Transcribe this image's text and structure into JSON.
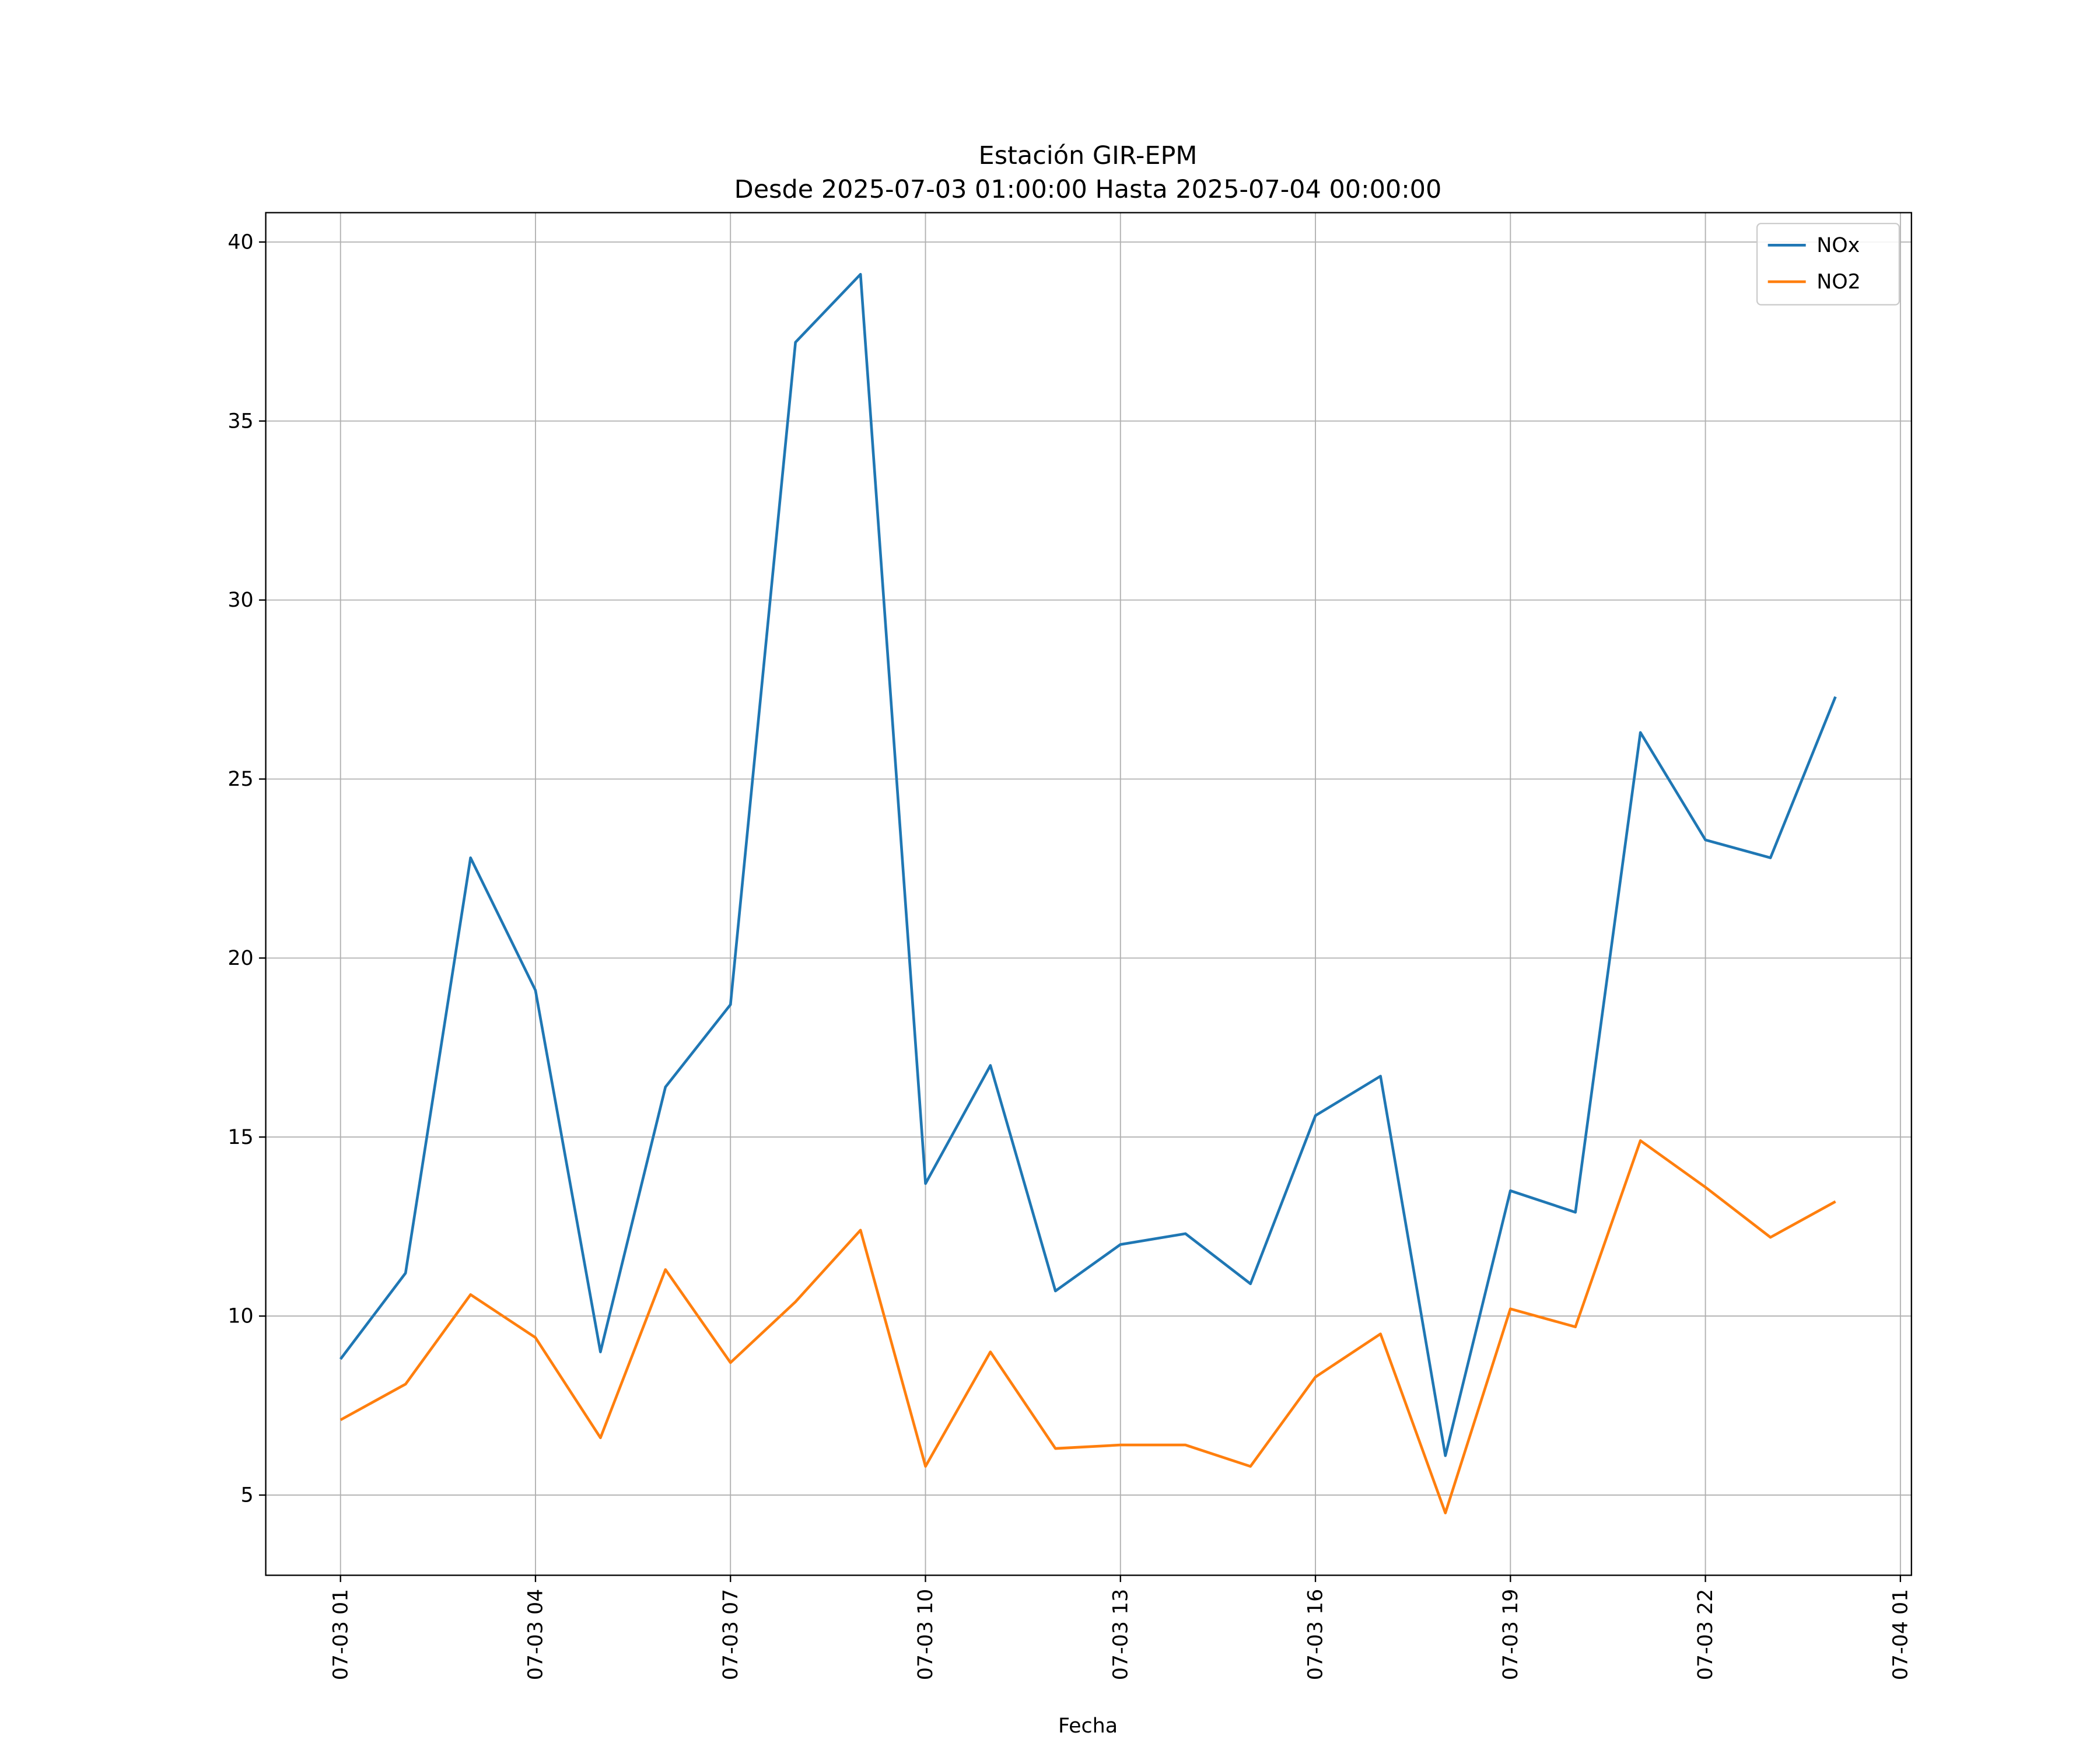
{
  "chart_data": {
    "type": "line",
    "title": "Estación GIR-EPM",
    "subtitle": "Desde 2025-07-03 01:00:00 Hasta 2025-07-04 00:00:00",
    "xlabel": "Fecha",
    "ylabel": "",
    "x": [
      "07-03 01",
      "07-03 02",
      "07-03 03",
      "07-03 04",
      "07-03 05",
      "07-03 06",
      "07-03 07",
      "07-03 08",
      "07-03 09",
      "07-03 10",
      "07-03 11",
      "07-03 12",
      "07-03 13",
      "07-03 14",
      "07-03 15",
      "07-03 16",
      "07-03 17",
      "07-03 18",
      "07-03 19",
      "07-03 20",
      "07-03 21",
      "07-03 22",
      "07-03 23",
      "07-04 00"
    ],
    "x_tick_labels": [
      "07-03 01",
      "07-03 04",
      "07-03 07",
      "07-03 10",
      "07-03 13",
      "07-03 16",
      "07-03 19",
      "07-03 22",
      "07-04 01"
    ],
    "x_tick_hours": [
      0,
      3,
      6,
      9,
      12,
      15,
      18,
      21,
      24
    ],
    "xlim_hours": [
      -1.15,
      24.17
    ],
    "y_ticks": [
      5,
      10,
      15,
      20,
      25,
      30,
      35,
      40
    ],
    "ylim": [
      2.76,
      40.82
    ],
    "grid": true,
    "legend_position": "top-right",
    "series": [
      {
        "name": "NOx",
        "color": "#1f77b4",
        "values": [
          8.8,
          11.2,
          22.8,
          19.1,
          9.0,
          16.4,
          18.7,
          37.2,
          39.1,
          13.7,
          17.0,
          10.7,
          12.0,
          12.3,
          10.9,
          15.6,
          16.7,
          6.1,
          13.5,
          12.9,
          26.3,
          23.3,
          22.8,
          27.3
        ]
      },
      {
        "name": "NO2",
        "color": "#ff7f0e",
        "values": [
          7.1,
          8.1,
          10.6,
          9.4,
          6.6,
          11.3,
          8.7,
          10.4,
          12.4,
          5.8,
          9.0,
          6.3,
          6.4,
          6.4,
          5.8,
          8.3,
          9.5,
          4.5,
          10.2,
          9.7,
          14.9,
          13.6,
          12.2,
          13.2
        ]
      }
    ]
  }
}
